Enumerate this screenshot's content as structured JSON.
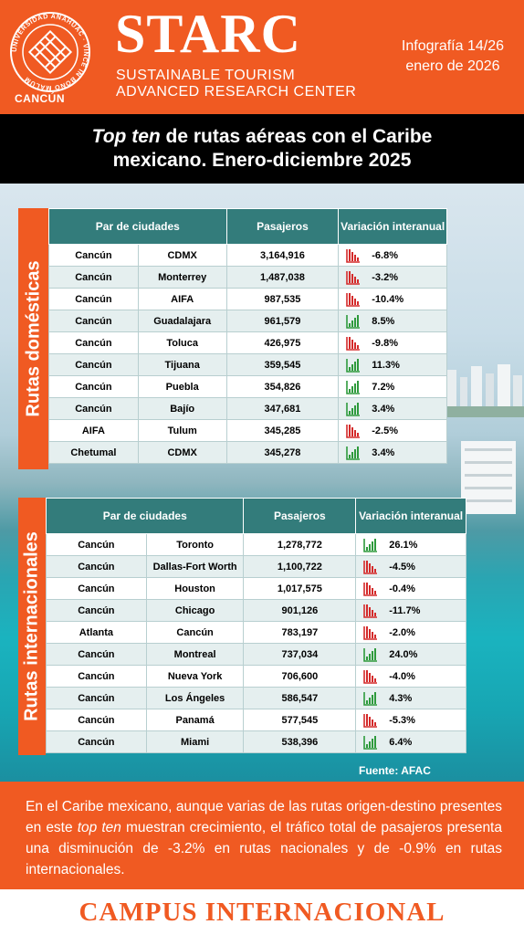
{
  "header": {
    "university_ring_text": "UNIVERSIDAD ANÁHUAC · VINCE IN BONO MALUM",
    "campus_label": "CANCÚN",
    "brand": "STARC",
    "brand_line1": "SUSTAINABLE TOURISM",
    "brand_line2": "ADVANCED RESEARCH CENTER",
    "info_line1": "Infografía 14/26",
    "info_line2": "enero de 2026"
  },
  "title": {
    "italic": "Top ten",
    "line1_rest": " de rutas aéreas con el Caribe",
    "line2": "mexicano. Enero-diciembre 2025"
  },
  "domestic": {
    "side_label": "Rutas domésticas",
    "headers": {
      "pair": "Par de ciudades",
      "pax": "Pasajeros",
      "var": "Variación interanual"
    },
    "rows": [
      {
        "origin": "Cancún",
        "dest": "CDMX",
        "pax": "3,164,916",
        "var": "-6.8%",
        "trend": "down"
      },
      {
        "origin": "Cancún",
        "dest": "Monterrey",
        "pax": "1,487,038",
        "var": "-3.2%",
        "trend": "down"
      },
      {
        "origin": "Cancún",
        "dest": "AIFA",
        "pax": "987,535",
        "var": "-10.4%",
        "trend": "down"
      },
      {
        "origin": "Cancún",
        "dest": "Guadalajara",
        "pax": "961,579",
        "var": "8.5%",
        "trend": "up"
      },
      {
        "origin": "Cancún",
        "dest": "Toluca",
        "pax": "426,975",
        "var": "-9.8%",
        "trend": "down"
      },
      {
        "origin": "Cancún",
        "dest": "Tijuana",
        "pax": "359,545",
        "var": "11.3%",
        "trend": "up"
      },
      {
        "origin": "Cancún",
        "dest": "Puebla",
        "pax": "354,826",
        "var": "7.2%",
        "trend": "up"
      },
      {
        "origin": "Cancún",
        "dest": "Bajío",
        "pax": "347,681",
        "var": "3.4%",
        "trend": "up"
      },
      {
        "origin": "AIFA",
        "dest": "Tulum",
        "pax": "345,285",
        "var": "-2.5%",
        "trend": "down"
      },
      {
        "origin": "Chetumal",
        "dest": "CDMX",
        "pax": "345,278",
        "var": "3.4%",
        "trend": "up"
      }
    ]
  },
  "international": {
    "side_label": "Rutas internacionales",
    "headers": {
      "pair": "Par de ciudades",
      "pax": "Pasajeros",
      "var": "Variación interanual"
    },
    "rows": [
      {
        "origin": "Cancún",
        "dest": "Toronto",
        "pax": "1,278,772",
        "var": "26.1%",
        "trend": "up"
      },
      {
        "origin": "Cancún",
        "dest": "Dallas-Fort Worth",
        "pax": "1,100,722",
        "var": "-4.5%",
        "trend": "down"
      },
      {
        "origin": "Cancún",
        "dest": "Houston",
        "pax": "1,017,575",
        "var": "-0.4%",
        "trend": "down"
      },
      {
        "origin": "Cancún",
        "dest": "Chicago",
        "pax": "901,126",
        "var": "-11.7%",
        "trend": "down"
      },
      {
        "origin": "Atlanta",
        "dest": "Cancún",
        "pax": "783,197",
        "var": "-2.0%",
        "trend": "down"
      },
      {
        "origin": "Cancún",
        "dest": "Montreal",
        "pax": "737,034",
        "var": "24.0%",
        "trend": "up"
      },
      {
        "origin": "Cancún",
        "dest": "Nueva York",
        "pax": "706,600",
        "var": "-4.0%",
        "trend": "down"
      },
      {
        "origin": "Cancún",
        "dest": "Los Ángeles",
        "pax": "586,547",
        "var": "4.3%",
        "trend": "up"
      },
      {
        "origin": "Cancún",
        "dest": "Panamá",
        "pax": "577,545",
        "var": "-5.3%",
        "trend": "down"
      },
      {
        "origin": "Cancún",
        "dest": "Miami",
        "pax": "538,396",
        "var": "6.4%",
        "trend": "up"
      }
    ]
  },
  "source": "Fuente: AFAC",
  "summary": {
    "part1": "En el Caribe mexicano, aunque varias de las rutas origen-destino presentes en este ",
    "italic": "top ten",
    "part2": " muestran crecimiento, el tráfico total de pasajeros presenta una disminución de -3.2% en rutas nacionales y de -0.9% en rutas internacionales."
  },
  "footer": "CAMPUS INTERNACIONAL",
  "colors": {
    "orange": "#f05a22",
    "teal_header": "#337c7b",
    "up": "#2e9a3c",
    "down": "#d42a2a"
  },
  "icons": {
    "up": "bar-chart-up-icon",
    "down": "bar-chart-down-icon"
  }
}
